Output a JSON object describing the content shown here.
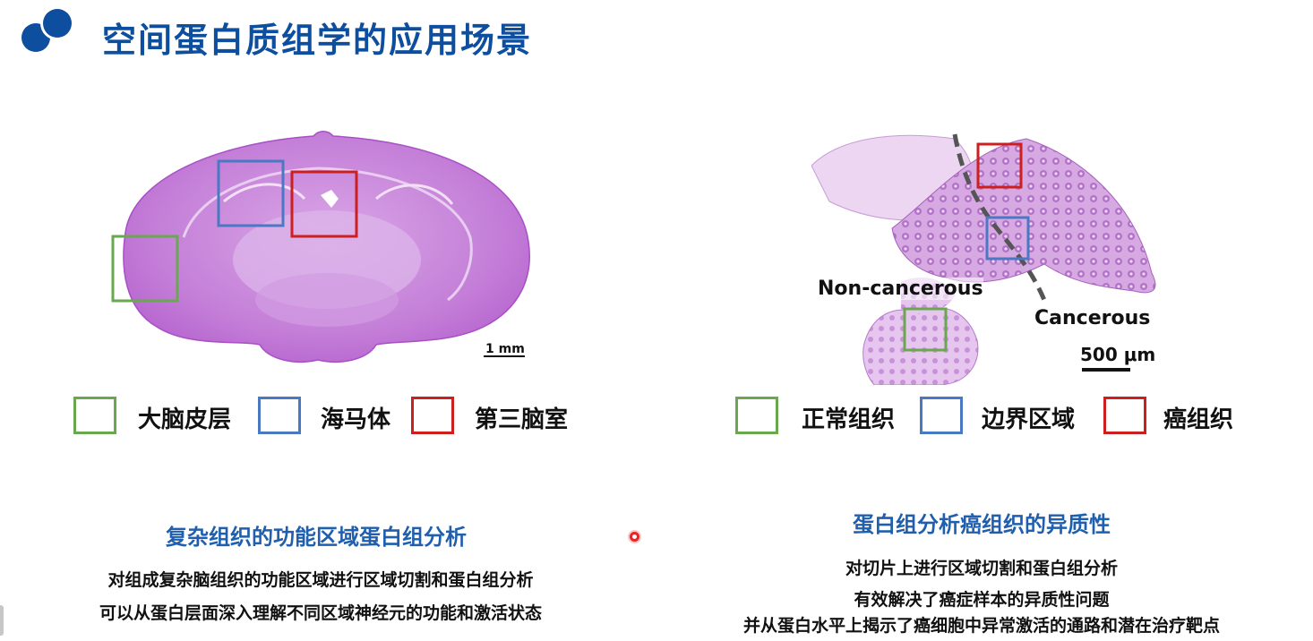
{
  "slide": {
    "title": "空间蛋白质组学的应用场景"
  },
  "left_panel": {
    "scale_label": "1 mm",
    "legend": [
      {
        "label": "大脑皮层",
        "color": "#6aa84f"
      },
      {
        "label": "海马体",
        "color": "#4a78c2"
      },
      {
        "label": "第三脑室",
        "color": "#cc1f1f"
      }
    ],
    "heading": "复杂组织的功能区域蛋白组分析",
    "lines": [
      "对组成复杂脑组织的功能区域进行区域切割和蛋白组分析",
      "可以从蛋白层面深入理解不同区域神经元的功能和激活状态"
    ]
  },
  "right_panel": {
    "label_noncancerous": "Non-cancerous",
    "label_cancerous": "Cancerous",
    "scale_label": "500 μm",
    "legend": [
      {
        "label": "正常组织",
        "color": "#6aa84f"
      },
      {
        "label": "边界区域",
        "color": "#4a78c2"
      },
      {
        "label": "癌组织",
        "color": "#cc1f1f"
      }
    ],
    "heading": "蛋白组分析癌组织的异质性",
    "lines": [
      "对切片上进行区域切割和蛋白组分析",
      "有效解决了癌症样本的异质性问题",
      "并从蛋白水平上揭示了癌细胞中异常激活的通路和潜在治疗靶点"
    ]
  }
}
